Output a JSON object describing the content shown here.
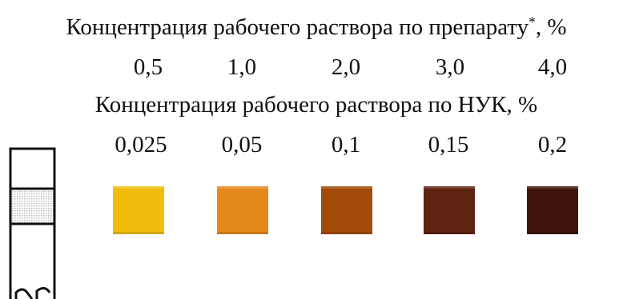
{
  "header_product": {
    "label_main": "Концентрация рабочего раствора по препарату",
    "label_mark": "*",
    "label_tail": ", %"
  },
  "row_product": {
    "values": [
      "0,5",
      "1,0",
      "2,0",
      "3,0",
      "4,0"
    ]
  },
  "header_nuk": {
    "label": "Концентрация рабочего раствора по НУК, %"
  },
  "row_nuk": {
    "values": [
      "0,025",
      "0,05",
      "0,1",
      "0,15",
      "0,2"
    ]
  },
  "color_scale": {
    "colors": [
      "#f1bd0c",
      "#e5891e",
      "#a44a09",
      "#5f2312",
      "#3f150c"
    ]
  },
  "indicator_strip": {
    "border_color": "#111111",
    "zone_color": "#d8d8d8"
  }
}
